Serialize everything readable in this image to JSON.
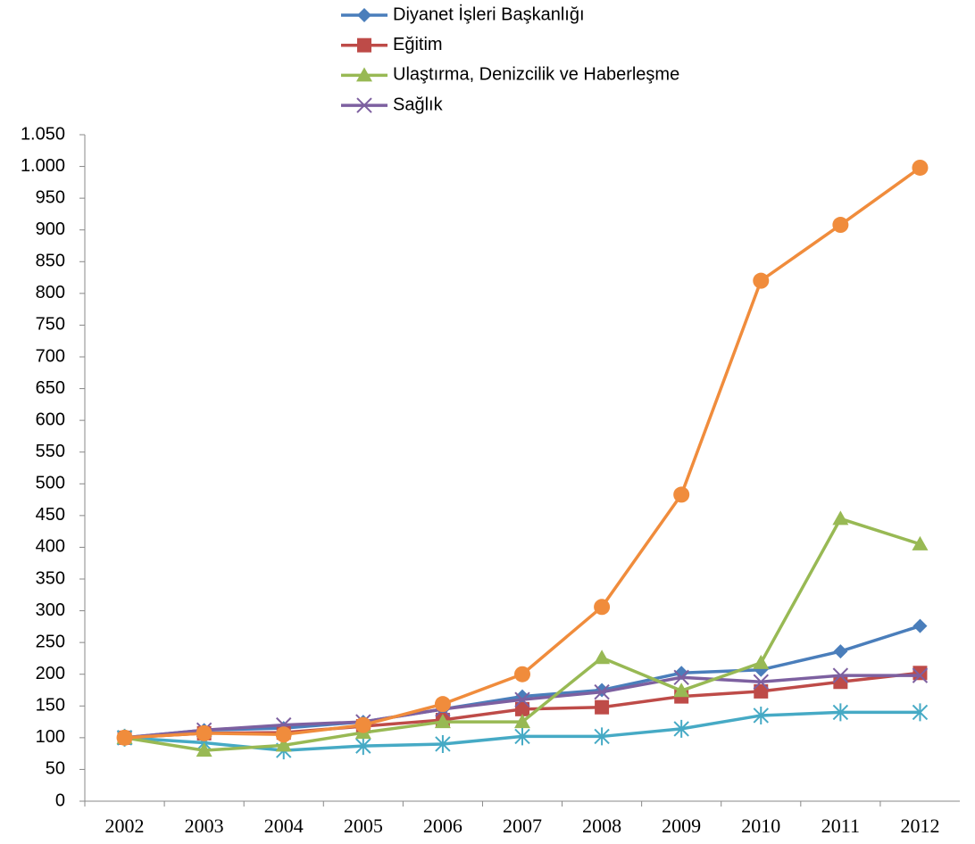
{
  "chart_data": {
    "type": "line",
    "categories": [
      "2002",
      "2003",
      "2004",
      "2005",
      "2006",
      "2007",
      "2008",
      "2009",
      "2010",
      "2011",
      "2012"
    ],
    "series": [
      {
        "name": "Diyanet İşleri Başkanlığı",
        "color": "#4a7ebb",
        "marker": "diamond",
        "values": [
          100,
          112,
          115,
          125,
          145,
          165,
          175,
          202,
          207,
          236,
          276
        ]
      },
      {
        "name": "Eğitim",
        "color": "#be4b48",
        "marker": "square",
        "values": [
          100,
          107,
          108,
          118,
          128,
          145,
          148,
          165,
          173,
          188,
          202
        ]
      },
      {
        "name": "Ulaştırma, Denizcilik ve Haberleşme",
        "color": "#98b954",
        "marker": "triangle",
        "values": [
          100,
          80,
          88,
          108,
          125,
          125,
          226,
          174,
          218,
          445,
          405
        ]
      },
      {
        "name": "Sağlık",
        "color": "#7d60a0",
        "marker": "x",
        "values": [
          100,
          112,
          120,
          125,
          145,
          160,
          172,
          195,
          188,
          198,
          198
        ]
      },
      {
        "color": "#f08c3c",
        "marker": "circle",
        "values": [
          100,
          107,
          105,
          120,
          153,
          200,
          306,
          483,
          820,
          908,
          998
        ]
      },
      {
        "color": "#46aac5",
        "marker": "star",
        "values": [
          100,
          92,
          80,
          87,
          90,
          102,
          102,
          114,
          135,
          140,
          140
        ]
      }
    ],
    "ylim": [
      0,
      1050
    ],
    "yticks": [
      0,
      50,
      100,
      150,
      200,
      250,
      300,
      350,
      400,
      450,
      500,
      550,
      600,
      650,
      700,
      750,
      800,
      850,
      900,
      950,
      {
        "value": 1000,
        "label": "1.000"
      },
      {
        "value": 1050,
        "label": "1.050"
      }
    ],
    "grid": false,
    "legend": "top"
  }
}
